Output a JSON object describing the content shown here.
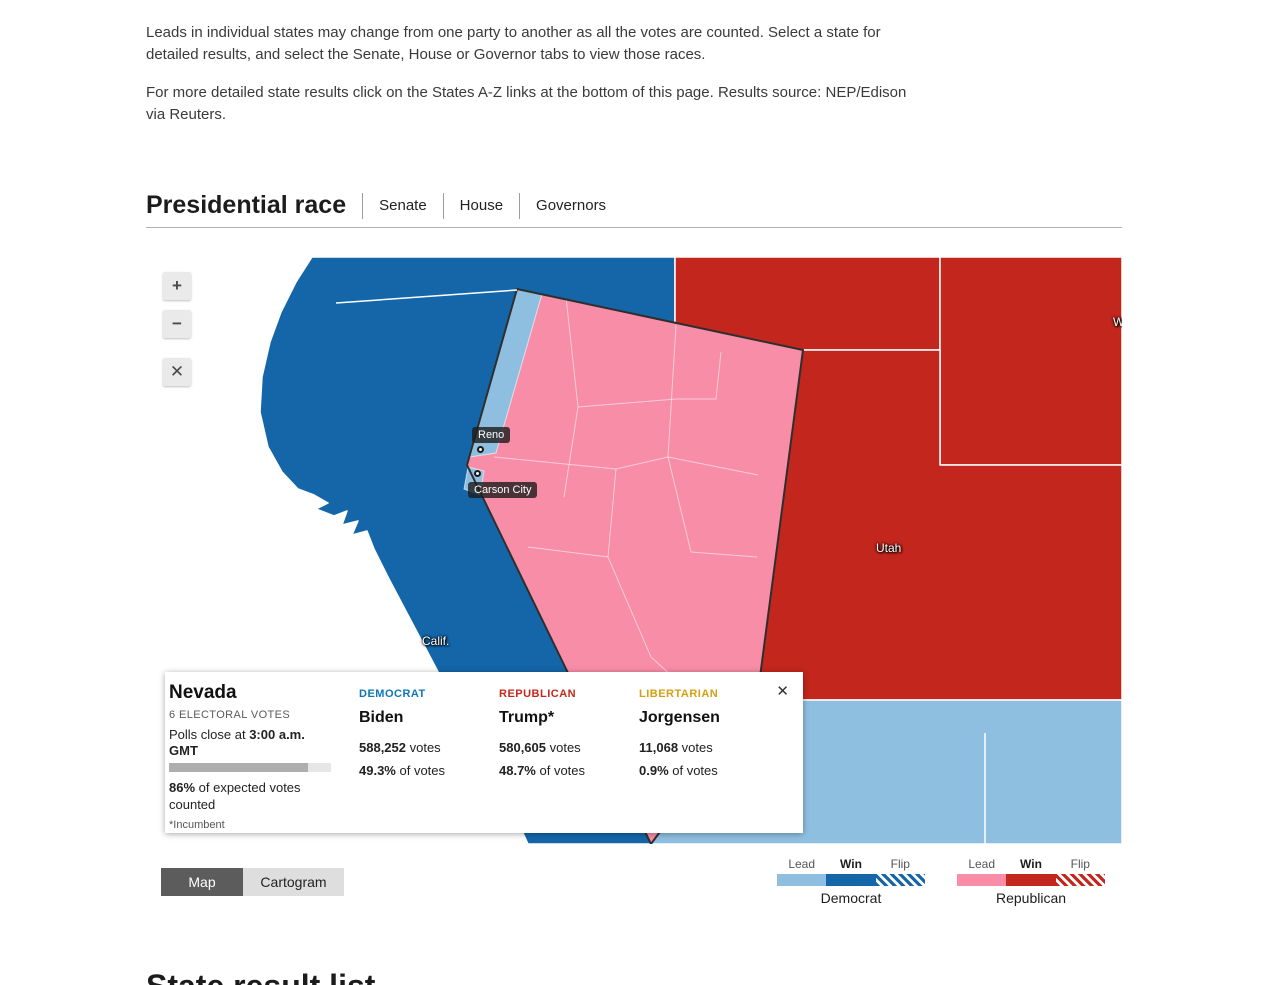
{
  "page": {
    "intro_para1": "Leads in individual states may change from one party to another as all the votes are counted. Select a state for detailed results, and select the Senate, House or Governor tabs to view those races.",
    "intro_para2": "For more detailed state results click on the States A-Z links at the bottom of this page. Results source: NEP/Edison via Reuters.",
    "bottom_heading": "State result list"
  },
  "tabs": {
    "title": "Presidential race",
    "senate": "Senate",
    "house": "House",
    "governors": "Governors"
  },
  "map": {
    "zoom_in": "+",
    "zoom_out": "−",
    "close": "✕",
    "labels": {
      "reno": "Reno",
      "carson_city": "Carson City",
      "california": "Calif.",
      "utah": "Utah",
      "wyoming": "W"
    },
    "colors": {
      "dem_win": "#1466a8",
      "dem_lead": "#8fbfe0",
      "rep_win": "#c3261d",
      "rep_lead": "#f78da7",
      "selected_border": "#2e2e2e"
    }
  },
  "toggle": {
    "map": "Map",
    "cartogram": "Cartogram"
  },
  "legend": {
    "lead": "Lead",
    "win": "Win",
    "flip": "Flip",
    "democrat": "Democrat",
    "republican": "Republican"
  },
  "popup": {
    "state": "Nevada",
    "electoral_votes": "6 ELECTORAL VOTES",
    "polls_close_prefix": "Polls close at ",
    "polls_close_time": "3:00 a.m. GMT",
    "progress_pct": "86%",
    "counted_suffix": " of expected votes counted",
    "incumbent_note": "*Incumbent",
    "close": "✕",
    "votes_suffix": " votes",
    "pct_suffix": " of votes",
    "candidates": [
      {
        "party": "DEMOCRAT",
        "name": "Biden",
        "votes": "588,252",
        "pct": "49.3%",
        "color": "#0e77b8"
      },
      {
        "party": "REPUBLICAN",
        "name": "Trump*",
        "votes": "580,605",
        "pct": "48.7%",
        "color": "#c4281c"
      },
      {
        "party": "LIBERTARIAN",
        "name": "Jorgensen",
        "votes": "11,068",
        "pct": "0.9%",
        "color": "#d2a012"
      }
    ]
  }
}
